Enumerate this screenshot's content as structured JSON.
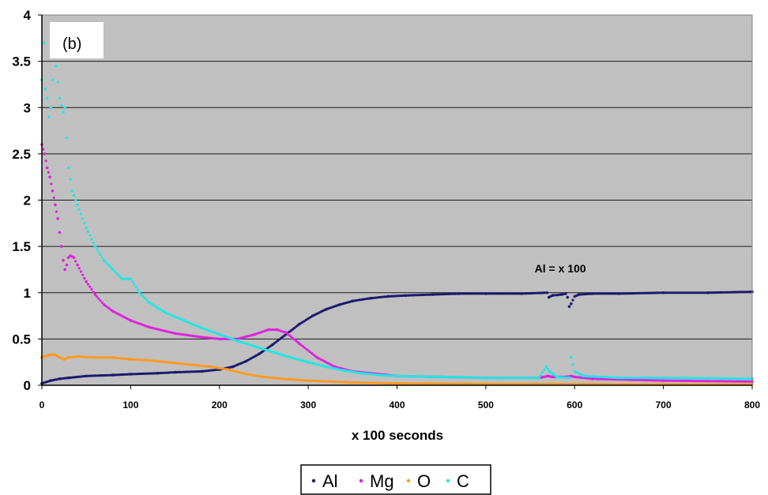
{
  "chart_data": {
    "type": "scatter",
    "title": "",
    "panel_label": "(b)",
    "xlabel": "x 100 seconds",
    "ylabel": "",
    "xlim": [
      0,
      800
    ],
    "ylim": [
      0,
      4
    ],
    "x_ticks": [
      "0",
      "100",
      "200",
      "300",
      "400",
      "500",
      "600",
      "700",
      "800"
    ],
    "y_ticks": [
      "0",
      "0.5",
      "1",
      "1.5",
      "2",
      "2.5",
      "3",
      "3.5",
      "4"
    ],
    "grid": "horizontal",
    "plot_background": "#c0c0c0",
    "annotation": {
      "text": "Al = x 100",
      "x": 555,
      "y": 1.22
    },
    "legend_position": "bottom-center",
    "series": [
      {
        "name": "Al",
        "color": "#1a1a6e",
        "points": [
          [
            0,
            0.02
          ],
          [
            10,
            0.05
          ],
          [
            20,
            0.07
          ],
          [
            30,
            0.08
          ],
          [
            50,
            0.1
          ],
          [
            80,
            0.11
          ],
          [
            100,
            0.12
          ],
          [
            130,
            0.13
          ],
          [
            150,
            0.14
          ],
          [
            180,
            0.15
          ],
          [
            200,
            0.17
          ],
          [
            215,
            0.2
          ],
          [
            230,
            0.26
          ],
          [
            245,
            0.34
          ],
          [
            260,
            0.44
          ],
          [
            275,
            0.55
          ],
          [
            290,
            0.66
          ],
          [
            305,
            0.75
          ],
          [
            320,
            0.82
          ],
          [
            335,
            0.87
          ],
          [
            350,
            0.91
          ],
          [
            370,
            0.94
          ],
          [
            390,
            0.96
          ],
          [
            410,
            0.97
          ],
          [
            440,
            0.98
          ],
          [
            470,
            0.99
          ],
          [
            500,
            0.99
          ],
          [
            540,
            0.99
          ],
          [
            569,
            1.0
          ],
          [
            571,
            0.95
          ],
          [
            575,
            0.97
          ],
          [
            585,
            0.98
          ],
          [
            590,
            0.99
          ],
          [
            592,
            0.95
          ],
          [
            594,
            0.85
          ],
          [
            596,
            0.88
          ],
          [
            600,
            0.96
          ],
          [
            605,
            0.98
          ],
          [
            620,
            0.99
          ],
          [
            650,
            0.99
          ],
          [
            700,
            1.0
          ],
          [
            750,
            1.0
          ],
          [
            800,
            1.01
          ]
        ]
      },
      {
        "name": "Mg",
        "color": "#dd22dd",
        "points": [
          [
            0,
            2.6
          ],
          [
            3,
            2.5
          ],
          [
            6,
            2.35
          ],
          [
            9,
            2.25
          ],
          [
            12,
            2.1
          ],
          [
            15,
            1.95
          ],
          [
            18,
            1.8
          ],
          [
            20,
            1.65
          ],
          [
            22,
            1.5
          ],
          [
            24,
            1.35
          ],
          [
            26,
            1.25
          ],
          [
            28,
            1.3
          ],
          [
            30,
            1.38
          ],
          [
            32,
            1.4
          ],
          [
            36,
            1.38
          ],
          [
            40,
            1.3
          ],
          [
            50,
            1.12
          ],
          [
            60,
            0.98
          ],
          [
            70,
            0.87
          ],
          [
            80,
            0.8
          ],
          [
            100,
            0.7
          ],
          [
            120,
            0.63
          ],
          [
            150,
            0.56
          ],
          [
            180,
            0.52
          ],
          [
            200,
            0.5
          ],
          [
            220,
            0.5
          ],
          [
            240,
            0.55
          ],
          [
            255,
            0.6
          ],
          [
            265,
            0.6
          ],
          [
            275,
            0.57
          ],
          [
            290,
            0.45
          ],
          [
            310,
            0.3
          ],
          [
            330,
            0.2
          ],
          [
            350,
            0.15
          ],
          [
            380,
            0.12
          ],
          [
            400,
            0.1
          ],
          [
            450,
            0.09
          ],
          [
            500,
            0.08
          ],
          [
            560,
            0.08
          ],
          [
            570,
            0.1
          ],
          [
            575,
            0.09
          ],
          [
            590,
            0.09
          ],
          [
            596,
            0.1
          ],
          [
            600,
            0.09
          ],
          [
            620,
            0.07
          ],
          [
            700,
            0.05
          ],
          [
            800,
            0.04
          ]
        ]
      },
      {
        "name": "O",
        "color": "#ff9a22",
        "points": [
          [
            0,
            0.3
          ],
          [
            5,
            0.32
          ],
          [
            10,
            0.33
          ],
          [
            15,
            0.33
          ],
          [
            20,
            0.3
          ],
          [
            25,
            0.28
          ],
          [
            30,
            0.3
          ],
          [
            40,
            0.31
          ],
          [
            60,
            0.3
          ],
          [
            80,
            0.3
          ],
          [
            100,
            0.28
          ],
          [
            120,
            0.27
          ],
          [
            150,
            0.24
          ],
          [
            170,
            0.22
          ],
          [
            190,
            0.2
          ],
          [
            210,
            0.17
          ],
          [
            230,
            0.12
          ],
          [
            250,
            0.09
          ],
          [
            270,
            0.07
          ],
          [
            300,
            0.05
          ],
          [
            350,
            0.03
          ],
          [
            400,
            0.02
          ],
          [
            500,
            0.015
          ],
          [
            600,
            0.012
          ],
          [
            700,
            0.01
          ],
          [
            800,
            0.01
          ]
        ]
      },
      {
        "name": "C",
        "color": "#22e5e5",
        "points": [
          [
            0,
            3.3
          ],
          [
            2,
            3.7
          ],
          [
            4,
            3.2
          ],
          [
            6,
            3.1
          ],
          [
            8,
            2.9
          ],
          [
            10,
            3.0
          ],
          [
            14,
            3.6
          ],
          [
            16,
            3.45
          ],
          [
            20,
            3.1
          ],
          [
            24,
            2.95
          ],
          [
            26,
            3.0
          ],
          [
            30,
            2.35
          ],
          [
            34,
            2.1
          ],
          [
            40,
            1.95
          ],
          [
            50,
            1.7
          ],
          [
            60,
            1.5
          ],
          [
            70,
            1.35
          ],
          [
            80,
            1.25
          ],
          [
            90,
            1.15
          ],
          [
            100,
            1.15
          ],
          [
            110,
            1.0
          ],
          [
            120,
            0.9
          ],
          [
            140,
            0.78
          ],
          [
            160,
            0.7
          ],
          [
            180,
            0.62
          ],
          [
            200,
            0.55
          ],
          [
            220,
            0.48
          ],
          [
            240,
            0.42
          ],
          [
            260,
            0.36
          ],
          [
            280,
            0.3
          ],
          [
            300,
            0.25
          ],
          [
            320,
            0.2
          ],
          [
            340,
            0.16
          ],
          [
            360,
            0.13
          ],
          [
            380,
            0.11
          ],
          [
            400,
            0.1
          ],
          [
            450,
            0.09
          ],
          [
            500,
            0.08
          ],
          [
            560,
            0.08
          ],
          [
            568,
            0.2
          ],
          [
            572,
            0.15
          ],
          [
            576,
            0.12
          ],
          [
            580,
            0.09
          ],
          [
            594,
            0.08
          ],
          [
            596,
            0.3
          ],
          [
            600,
            0.15
          ],
          [
            610,
            0.1
          ],
          [
            650,
            0.08
          ],
          [
            700,
            0.08
          ],
          [
            800,
            0.07
          ]
        ]
      }
    ]
  }
}
